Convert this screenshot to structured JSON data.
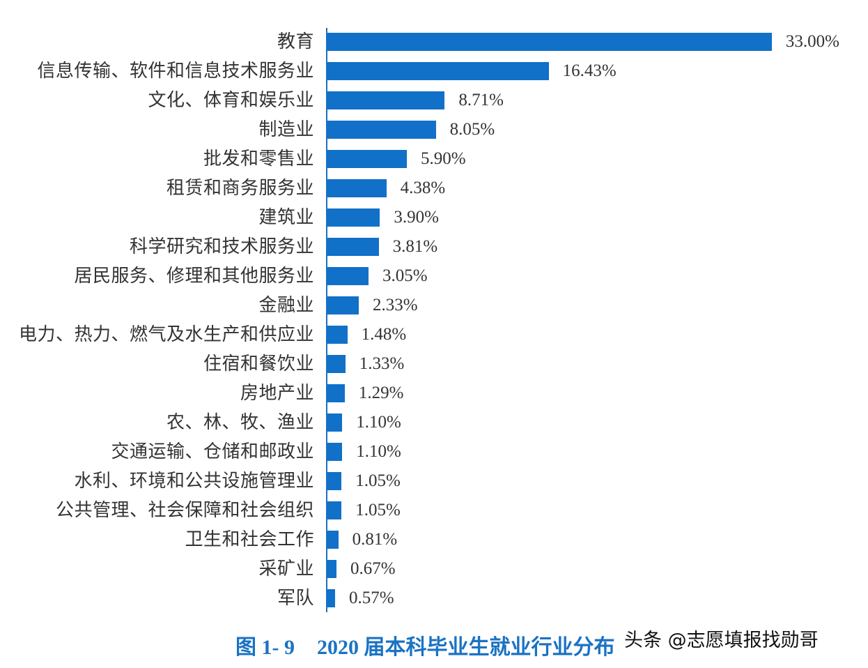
{
  "chart_data": {
    "type": "bar",
    "orientation": "horizontal",
    "title": "图 1- 9　2020 届本科毕业生就业行业分布",
    "xlabel": "",
    "ylabel": "",
    "grid": false,
    "legend": null,
    "bar_color": "#1170C8",
    "categories": [
      "教育",
      "信息传输、软件和信息技术服务业",
      "文化、体育和娱乐业",
      "制造业",
      "批发和零售业",
      "租赁和商务服务业",
      "建筑业",
      "科学研究和技术服务业",
      "居民服务、修理和其他服务业",
      "金融业",
      "电力、热力、燃气及水生产和供应业",
      "住宿和餐饮业",
      "房地产业",
      "农、林、牧、渔业",
      "交通运输、仓储和邮政业",
      "水利、环境和公共设施管理业",
      "公共管理、社会保障和社会组织",
      "卫生和社会工作",
      "采矿业",
      "军队"
    ],
    "values": [
      33.0,
      16.43,
      8.71,
      8.05,
      5.9,
      4.38,
      3.9,
      3.81,
      3.05,
      2.33,
      1.48,
      1.33,
      1.29,
      1.1,
      1.1,
      1.05,
      1.05,
      0.81,
      0.67,
      0.57
    ],
    "value_labels": [
      "33.00%",
      "16.43%",
      "8.71%",
      "8.05%",
      "5.90%",
      "4.38%",
      "3.90%",
      "3.81%",
      "3.05%",
      "2.33%",
      "1.48%",
      "1.33%",
      "1.29%",
      "1.10%",
      "1.10%",
      "1.05%",
      "1.05%",
      "0.81%",
      "0.67%",
      "0.57%"
    ],
    "unit": "%"
  },
  "caption": {
    "figure_number": "图 1- 9",
    "text": "2020 届本科毕业生就业行业分布"
  },
  "watermark": "头条 @志愿填报找勋哥"
}
